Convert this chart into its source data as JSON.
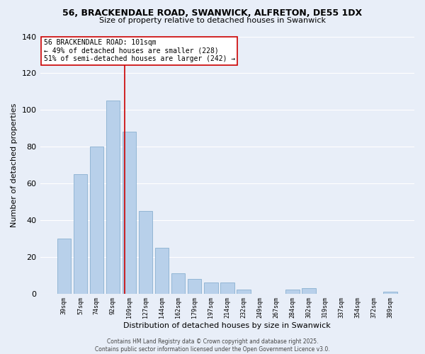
{
  "title": "56, BRACKENDALE ROAD, SWANWICK, ALFRETON, DE55 1DX",
  "subtitle": "Size of property relative to detached houses in Swanwick",
  "xlabel": "Distribution of detached houses by size in Swanwick",
  "ylabel": "Number of detached properties",
  "bar_labels": [
    "39sqm",
    "57sqm",
    "74sqm",
    "92sqm",
    "109sqm",
    "127sqm",
    "144sqm",
    "162sqm",
    "179sqm",
    "197sqm",
    "214sqm",
    "232sqm",
    "249sqm",
    "267sqm",
    "284sqm",
    "302sqm",
    "319sqm",
    "337sqm",
    "354sqm",
    "372sqm",
    "389sqm"
  ],
  "bar_values": [
    30,
    65,
    80,
    105,
    88,
    45,
    25,
    11,
    8,
    6,
    6,
    2,
    0,
    0,
    2,
    3,
    0,
    0,
    0,
    0,
    1
  ],
  "bar_color": "#b8d0ea",
  "bar_edge_color": "#89b0d0",
  "vline_x": 3.72,
  "vline_color": "#cc0000",
  "annotation_lines": [
    "56 BRACKENDALE ROAD: 101sqm",
    "← 49% of detached houses are smaller (228)",
    "51% of semi-detached houses are larger (242) →"
  ],
  "box_color": "#ffffff",
  "box_edge_color": "#cc0000",
  "ylim": [
    0,
    140
  ],
  "yticks": [
    0,
    20,
    40,
    60,
    80,
    100,
    120,
    140
  ],
  "footer_line1": "Contains HM Land Registry data © Crown copyright and database right 2025.",
  "footer_line2": "Contains public sector information licensed under the Open Government Licence v3.0.",
  "bg_color": "#e8eef8",
  "grid_color": "#ffffff",
  "title_fontsize": 9,
  "subtitle_fontsize": 8,
  "ylabel_fontsize": 8,
  "xlabel_fontsize": 8,
  "ytick_fontsize": 8,
  "xtick_fontsize": 6,
  "annot_fontsize": 7,
  "footer_fontsize": 5.5
}
